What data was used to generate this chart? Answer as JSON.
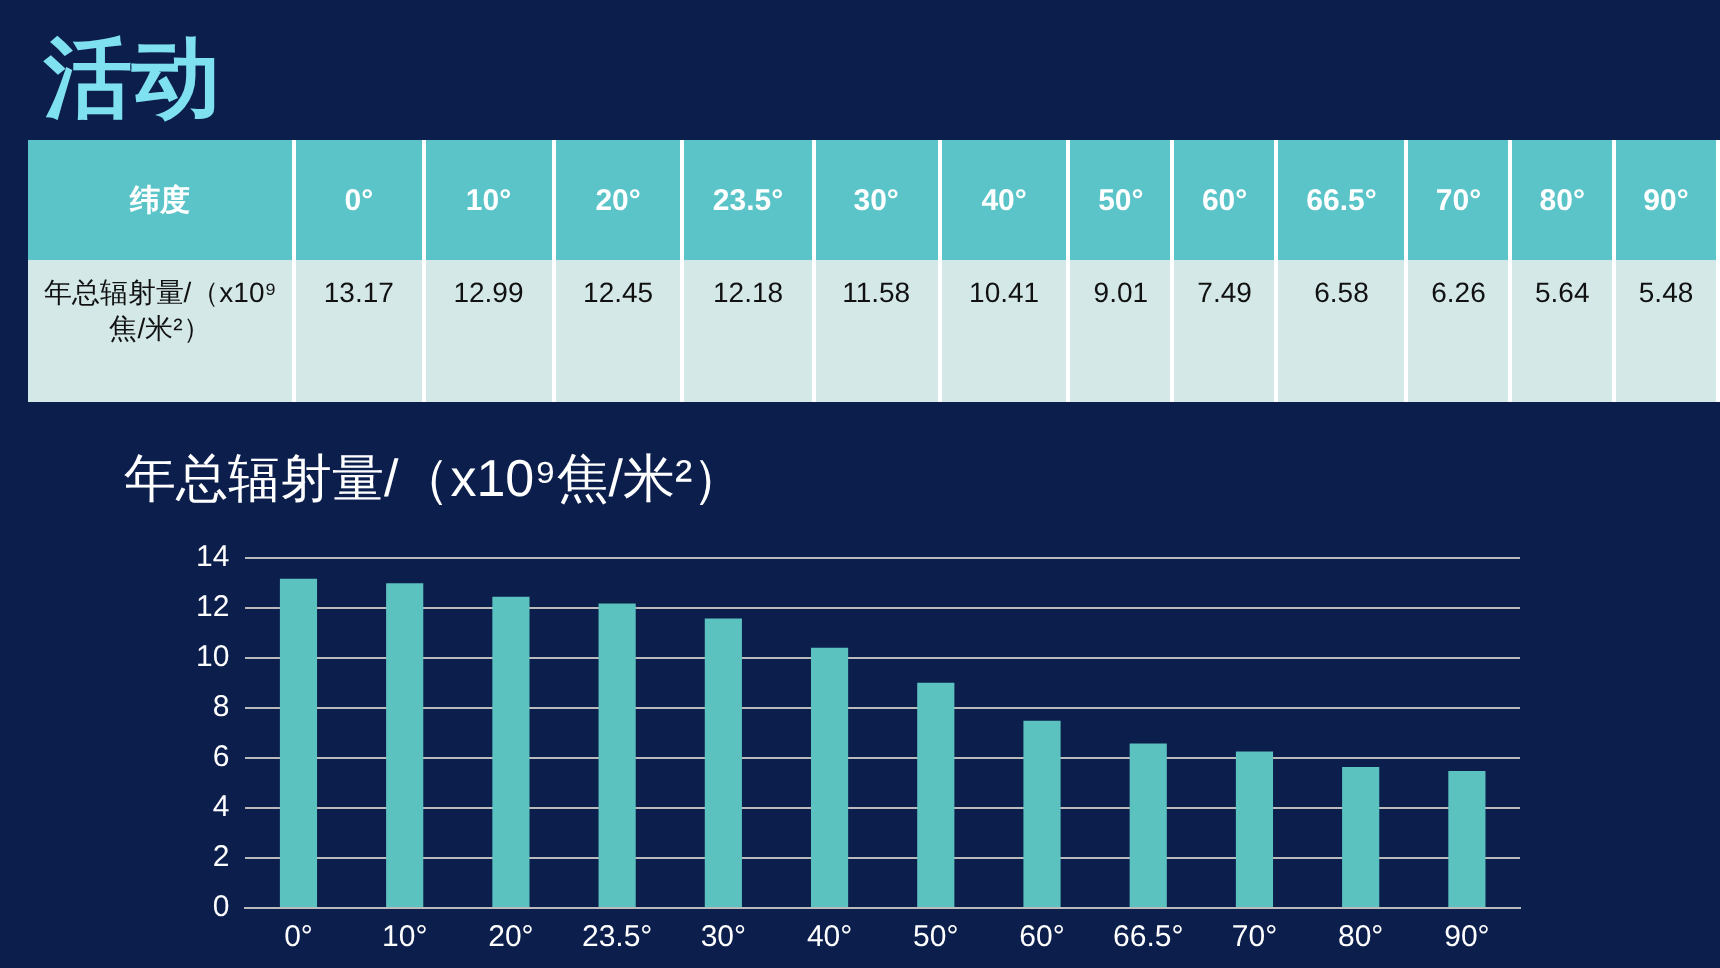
{
  "chart_data": {
    "type": "bar",
    "title": "活动",
    "subtitle": "年总辐射量/（x10⁹焦/米²）",
    "annotations": [
      "纬度",
      "13.17",
      "12.99",
      "12.45",
      "12.18",
      "11.58",
      "10.41",
      "9.01",
      "7.49",
      "6.58",
      "6.26",
      "5.64",
      "5.48"
    ],
    "categories": [
      "0°",
      "10°",
      "20°",
      "23.5°",
      "30°",
      "40°",
      "50°",
      "60°",
      "66.5°",
      "70°",
      "80°",
      "90°"
    ],
    "values": [
      13.17,
      12.99,
      12.45,
      12.18,
      11.58,
      10.41,
      9.01,
      7.49,
      6.58,
      6.26,
      5.64,
      5.48
    ],
    "color": "#5bc2c0",
    "ylim": [
      0,
      14
    ],
    "yticks": [
      0,
      2,
      4,
      6,
      8,
      10,
      12,
      14
    ],
    "grid": "y"
  }
}
